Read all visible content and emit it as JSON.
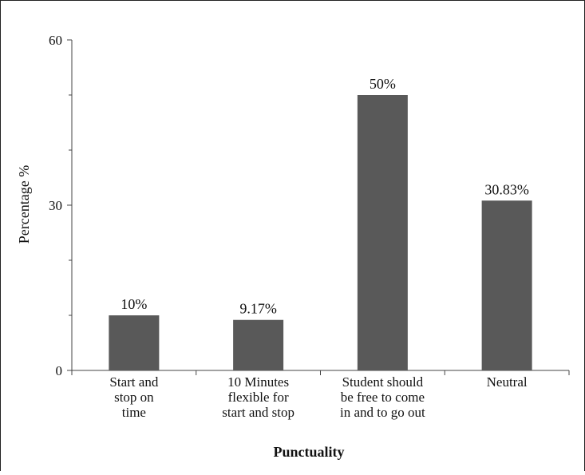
{
  "chart_data": {
    "type": "bar",
    "categories": [
      [
        "Start and",
        "stop on",
        "time"
      ],
      [
        "10 Minutes",
        "flexible for",
        "start and stop"
      ],
      [
        "Student should",
        "be free to come",
        "in and to go out"
      ],
      [
        "Neutral"
      ]
    ],
    "values": [
      10,
      9.17,
      50,
      30.83
    ],
    "data_labels": [
      "10%",
      "9.17%",
      "50%",
      "30.83%"
    ],
    "title": "",
    "xlabel": "Punctuality",
    "ylabel": "Percentage %",
    "ylim": [
      0,
      60
    ],
    "yticks": [
      0,
      30,
      60
    ],
    "bar_color": "#595959",
    "grid": false,
    "legend": "none"
  }
}
